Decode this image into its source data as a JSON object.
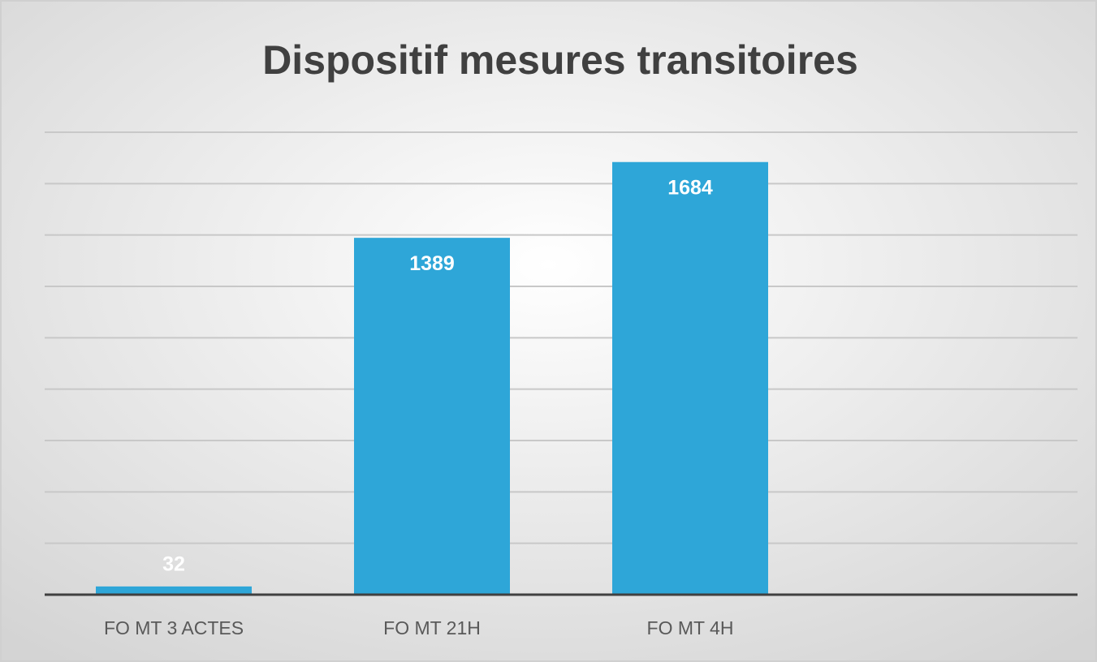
{
  "chart_data": {
    "type": "bar",
    "title": "Dispositif mesures transitoires",
    "categories": [
      "FO MT 3 ACTES",
      "FO MT 21H",
      "FO MT 4H",
      null
    ],
    "values": [
      32,
      1389,
      1684,
      null
    ],
    "color": "#2ea6d8",
    "ylim": [
      0,
      1800
    ],
    "yticks": [
      0,
      200,
      400,
      600,
      800,
      1000,
      1200,
      1400,
      1600,
      1800
    ],
    "grid": true
  }
}
